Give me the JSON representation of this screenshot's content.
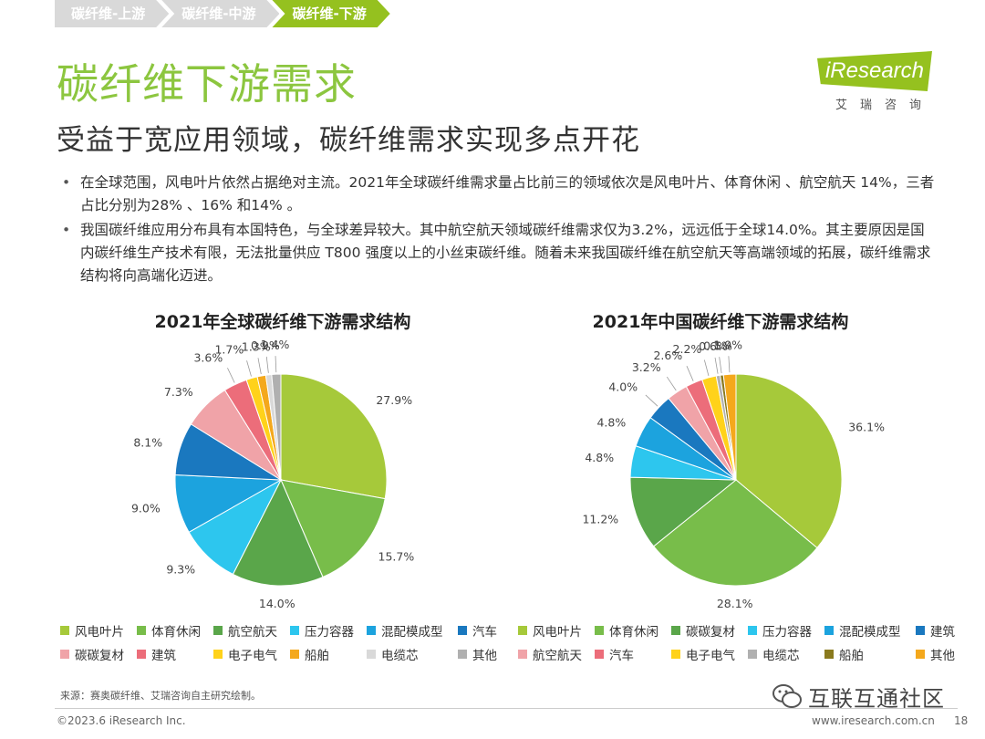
{
  "breadcrumb": [
    "碳纤维-上游",
    "碳纤维-中游",
    "碳纤维-下游"
  ],
  "title": "碳纤维下游需求",
  "subtitle": "受益于宽应用领域，碳纤维需求实现多点开花",
  "logo": {
    "text": "iResearch",
    "sub": "艾瑞咨询"
  },
  "bullets": [
    "在全球范围，风电叶片依然占据绝对主流。2021年全球碳纤维需求量占比前三的领域依次是风电叶片、体育休闲 、航空航天 14%，三者占比分别为28% 、16% 和14% 。",
    "我国碳纤维应用分布具有本国特色，与全球差异较大。其中航空航天领域碳纤维需求仅为3.2%，远远低于全球14.0%。其主要原因是国内碳纤维生产技术有限，无法批量供应 T800 强度以上的小丝束碳纤维。随着未来我国碳纤维在航空航天等高端领域的拓展，碳纤维需求结构将向高端化迈进。"
  ],
  "chart_data": [
    {
      "type": "pie",
      "title": "2021年全球碳纤维下游需求结构",
      "series": [
        {
          "label": "风电叶片",
          "value": 27.9,
          "display": "27.9%",
          "color": "#a6c93a"
        },
        {
          "label": "体育休闲",
          "value": 15.7,
          "display": "15.7%",
          "color": "#78bd4a"
        },
        {
          "label": "航空航天",
          "value": 14.0,
          "display": "14.0%",
          "color": "#5aa64a"
        },
        {
          "label": "压力容器",
          "value": 9.3,
          "display": "9.3%",
          "color": "#2dc6ee"
        },
        {
          "label": "混配模成型",
          "value": 9.0,
          "display": "9.0%",
          "color": "#1ca3de"
        },
        {
          "label": "汽车",
          "value": 8.1,
          "display": "8.1%",
          "color": "#1a78bf"
        },
        {
          "label": "碳碳复材",
          "value": 7.3,
          "display": "7.3%",
          "color": "#f0a3a8"
        },
        {
          "label": "建筑",
          "value": 3.6,
          "display": "3.6%",
          "color": "#ec6d7a"
        },
        {
          "label": "电子电气",
          "value": 1.7,
          "display": "1.7%",
          "color": "#ffd21a"
        },
        {
          "label": "船舶",
          "value": 1.3,
          "display": "1.3%",
          "color": "#f4a81c"
        },
        {
          "label": "电缆芯",
          "value": 0.9,
          "display": "0.9%",
          "color": "#d9d9d9"
        },
        {
          "label": "其他",
          "value": 1.4,
          "display": "1.4%",
          "color": "#b0b0b0"
        }
      ]
    },
    {
      "type": "pie",
      "title": "2021年中国碳纤维下游需求结构",
      "series": [
        {
          "label": "风电叶片",
          "value": 36.1,
          "display": "36.1%",
          "color": "#a6c93a"
        },
        {
          "label": "体育休闲",
          "value": 28.1,
          "display": "28.1%",
          "color": "#78bd4a"
        },
        {
          "label": "碳碳复材",
          "value": 11.2,
          "display": "11.2%",
          "color": "#5aa64a"
        },
        {
          "label": "压力容器",
          "value": 4.8,
          "display": "4.8%",
          "color": "#2dc6ee"
        },
        {
          "label": "混配模成型",
          "value": 4.8,
          "display": "4.8%",
          "color": "#1ca3de"
        },
        {
          "label": "建筑",
          "value": 4.0,
          "display": "4.0%",
          "color": "#1a78bf"
        },
        {
          "label": "航空航天",
          "value": 3.2,
          "display": "3.2%",
          "color": "#f0a3a8"
        },
        {
          "label": "汽车",
          "value": 2.6,
          "display": "2.6%",
          "color": "#ec6d7a"
        },
        {
          "label": "电子电气",
          "value": 2.2,
          "display": "2.2%",
          "color": "#ffd21a"
        },
        {
          "label": "电缆芯",
          "value": 0.6,
          "display": "0.6%",
          "color": "#b0b0b0"
        },
        {
          "label": "船舶",
          "value": 0.5,
          "display": "0.5%",
          "color": "#8a7a1e"
        },
        {
          "label": "其他",
          "value": 1.9,
          "display": "1.9%",
          "color": "#f4a81c"
        }
      ]
    }
  ],
  "source": "来源：赛奥碳纤维、艾瑞咨询自主研究绘制。",
  "copyright": "©2023.6 iResearch Inc.",
  "website": "www.iresearch.com.cn",
  "page_number": "18",
  "watermark": "互联互通社区"
}
